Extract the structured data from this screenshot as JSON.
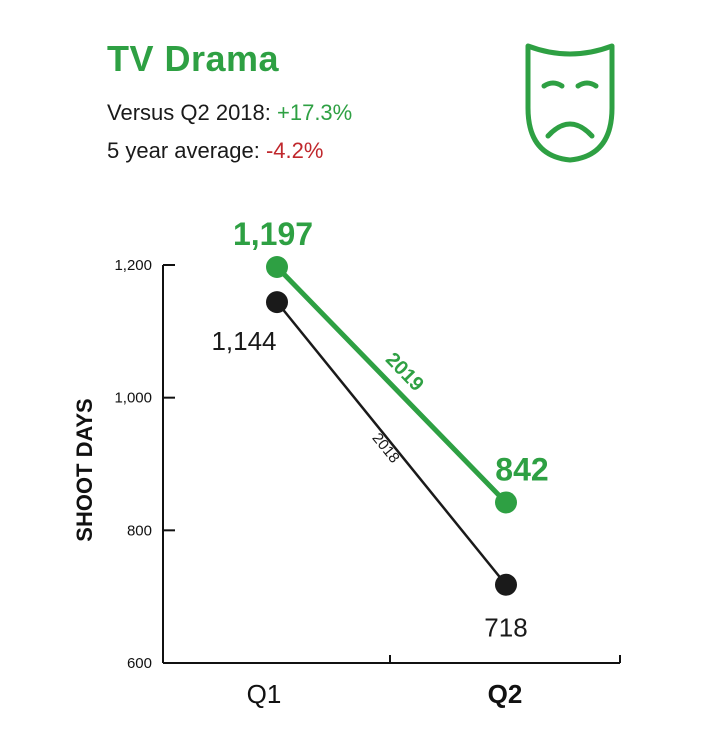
{
  "header": {
    "title": "TV Drama",
    "versus_label": "Versus Q2 2018: ",
    "versus_value": "+17.3%",
    "avg_label": "5 year average: ",
    "avg_value": "-4.2%"
  },
  "icon": "drama-mask-icon",
  "colors": {
    "green": "#2ea043",
    "black": "#1a1a1a",
    "red": "#c0282d"
  },
  "chart_data": {
    "type": "line",
    "categories": [
      "Q1",
      "Q2"
    ],
    "ylabel": "SHOOT DAYS",
    "ylim": [
      600,
      1200
    ],
    "yticks": [
      600,
      800,
      1000,
      1200
    ],
    "ytick_labels": [
      "600",
      "800",
      "1,000",
      "1,200"
    ],
    "series": [
      {
        "name": "2019",
        "values": [
          1197,
          842
        ],
        "labels": [
          "1,197",
          "842"
        ],
        "color": "#2ea043"
      },
      {
        "name": "2018",
        "values": [
          1144,
          718
        ],
        "labels": [
          "1,144",
          "718"
        ],
        "color": "#1a1a1a"
      }
    ]
  }
}
